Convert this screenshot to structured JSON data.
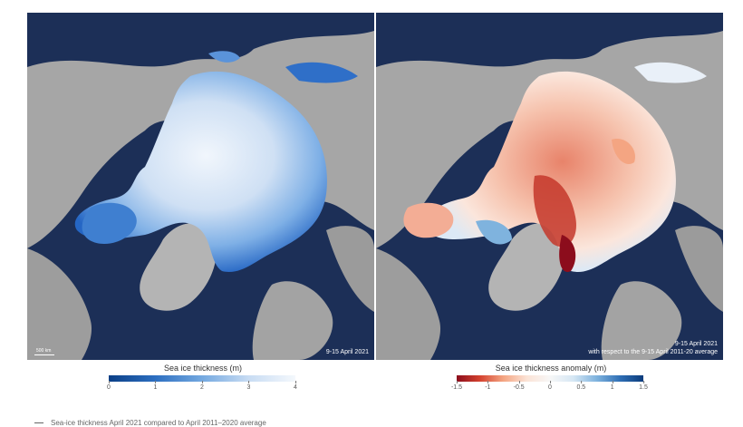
{
  "left_map": {
    "date_label": "9-15 April 2021",
    "scale_label": "500 km"
  },
  "right_map": {
    "date_line1": "9-15 April 2021",
    "date_line2": "with respect to the 9-15 April 2011-20 average"
  },
  "legend_left": {
    "title": "Sea ice thickness (m)",
    "ticks": [
      "0",
      "1",
      "2",
      "3",
      "4"
    ]
  },
  "legend_right": {
    "title": "Sea ice thickness anomaly (m)",
    "ticks": [
      "-1.5",
      "-1",
      "-0.5",
      "0",
      "0.5",
      "1",
      "1.5"
    ]
  },
  "caption": "Sea-ice thickness April 2021 compared to April 2011–2020 average",
  "colors": {
    "ocean": "#1c2f57",
    "land": "#a9a9a9",
    "ice_thick": "#eef5fc",
    "ice_thin": "#1f5fb8",
    "anomaly_negative": "#c0392b",
    "anomaly_positive": "#2f6fb5"
  }
}
